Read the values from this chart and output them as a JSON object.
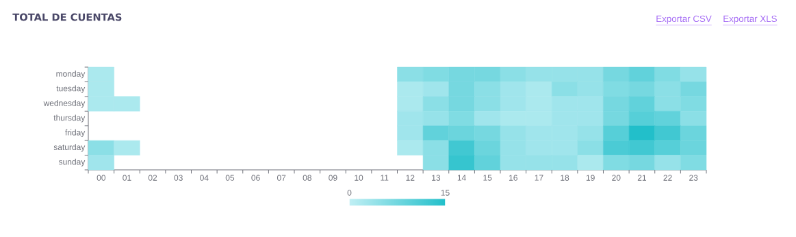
{
  "chart_data": {
    "type": "heatmap",
    "title": "TOTAL DE CUENTAS",
    "annotations": [
      "Exportar CSV",
      "Exportar XLS"
    ],
    "categories": [
      "00",
      "01",
      "02",
      "03",
      "04",
      "05",
      "06",
      "07",
      "08",
      "09",
      "10",
      "11",
      "12",
      "13",
      "14",
      "15",
      "16",
      "17",
      "18",
      "19",
      "20",
      "21",
      "22",
      "23"
    ],
    "y_categories": [
      "monday",
      "tuesday",
      "wednesday",
      "thursday",
      "friday",
      "saturday",
      "sunday"
    ],
    "cells": [
      [
        2,
        null,
        null,
        null,
        null,
        null,
        null,
        null,
        null,
        null,
        null,
        null,
        5,
        6,
        7,
        7,
        5,
        4,
        4,
        4,
        7,
        9,
        6,
        4
      ],
      [
        2,
        null,
        null,
        null,
        null,
        null,
        null,
        null,
        null,
        null,
        null,
        null,
        2,
        3,
        7,
        5,
        3,
        2,
        5,
        4,
        6,
        7,
        5,
        7
      ],
      [
        2,
        2,
        null,
        null,
        null,
        null,
        null,
        null,
        null,
        null,
        null,
        null,
        2,
        5,
        7,
        5,
        3,
        2,
        3,
        3,
        7,
        9,
        5,
        6
      ],
      [
        null,
        null,
        null,
        null,
        null,
        null,
        null,
        null,
        null,
        null,
        null,
        null,
        3,
        4,
        6,
        3,
        2,
        2,
        3,
        3,
        7,
        10,
        9,
        5
      ],
      [
        null,
        null,
        null,
        null,
        null,
        null,
        null,
        null,
        null,
        null,
        null,
        null,
        3,
        9,
        8,
        7,
        4,
        3,
        3,
        4,
        10,
        15,
        12,
        8
      ],
      [
        5,
        2,
        null,
        null,
        null,
        null,
        null,
        null,
        null,
        null,
        null,
        null,
        2,
        5,
        12,
        8,
        4,
        3,
        3,
        5,
        11,
        12,
        10,
        8
      ],
      [
        3,
        null,
        null,
        null,
        null,
        null,
        null,
        null,
        null,
        null,
        null,
        null,
        null,
        5,
        13,
        9,
        4,
        4,
        4,
        2,
        6,
        7,
        4,
        6
      ]
    ],
    "clim": [
      0,
      15
    ],
    "cticks": [
      0,
      15
    ]
  }
}
